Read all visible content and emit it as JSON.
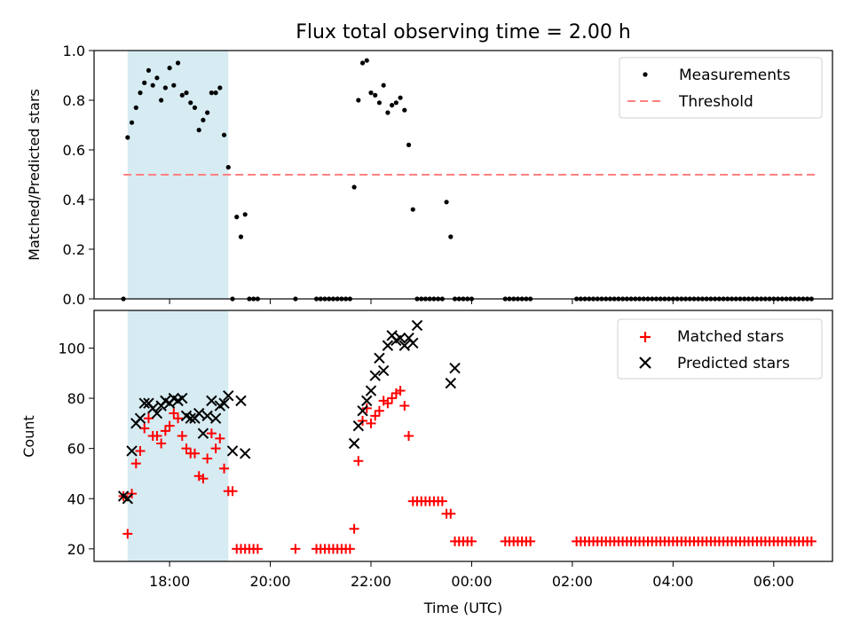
{
  "title": "Flux total observing time = 2.00 h",
  "colors": {
    "matched": "#ff0000",
    "predicted": "#000000",
    "threshold": "#ff8080",
    "span": "#add8e6"
  },
  "chart_data": [
    {
      "type": "scatter",
      "ylabel": "Matched/Predicted stars",
      "ylim": [
        0,
        1.0
      ],
      "yticks": [
        "0.0",
        "0.2",
        "0.4",
        "0.6",
        "0.8",
        "1.0"
      ],
      "legend": [
        "Measurements",
        "Threshold"
      ],
      "legend_position": "top-right",
      "threshold": 0.5,
      "threshold_range": [
        "17:05",
        "06:50"
      ],
      "shaded_span": [
        "17:10",
        "19:10"
      ],
      "series": [
        {
          "name": "Measurements",
          "x": [
            "17:05",
            "17:10",
            "17:15",
            "17:20",
            "17:25",
            "17:30",
            "17:35",
            "17:40",
            "17:45",
            "17:50",
            "17:55",
            "18:00",
            "18:05",
            "18:10",
            "18:15",
            "18:20",
            "18:25",
            "18:30",
            "18:35",
            "18:40",
            "18:45",
            "18:50",
            "18:55",
            "19:00",
            "19:05",
            "19:10",
            "19:15",
            "19:20",
            "19:25",
            "19:30",
            "19:35",
            "19:40",
            "19:45",
            "20:30",
            "20:55",
            "21:00",
            "21:05",
            "21:10",
            "21:15",
            "21:20",
            "21:25",
            "21:30",
            "21:35",
            "21:40",
            "21:45",
            "21:50",
            "21:55",
            "22:00",
            "22:05",
            "22:10",
            "22:15",
            "22:20",
            "22:25",
            "22:30",
            "22:35",
            "22:40",
            "22:45",
            "22:50",
            "22:55",
            "23:00",
            "23:05",
            "23:10",
            "23:15",
            "23:20",
            "23:25",
            "23:30",
            "23:35",
            "23:40",
            "23:45",
            "23:50",
            "23:55",
            "00:00",
            "00:40",
            "00:45",
            "00:50",
            "00:55",
            "01:00",
            "01:05",
            "01:10",
            "02:05",
            "02:10",
            "02:15",
            "02:20",
            "02:25",
            "02:30",
            "02:35",
            "02:40",
            "02:45",
            "02:50",
            "02:55",
            "03:00",
            "03:05",
            "03:10",
            "03:15",
            "03:20",
            "03:25",
            "03:30",
            "03:35",
            "03:40",
            "03:45",
            "03:50",
            "03:55",
            "04:00",
            "04:05",
            "04:10",
            "04:15",
            "04:20",
            "04:25",
            "04:30",
            "04:35",
            "04:40",
            "04:45",
            "04:50",
            "04:55",
            "05:00",
            "05:05",
            "05:10",
            "05:15",
            "05:20",
            "05:25",
            "05:30",
            "05:35",
            "05:40",
            "05:45",
            "05:50",
            "05:55",
            "06:00",
            "06:05",
            "06:10",
            "06:15",
            "06:20",
            "06:25",
            "06:30",
            "06:35",
            "06:40",
            "06:45"
          ],
          "y": [
            0.0,
            0.65,
            0.71,
            0.77,
            0.83,
            0.87,
            0.92,
            0.86,
            0.89,
            0.8,
            0.85,
            0.93,
            0.86,
            0.95,
            0.82,
            0.83,
            0.79,
            0.77,
            0.68,
            0.72,
            0.75,
            0.83,
            0.83,
            0.85,
            0.66,
            0.53,
            0.0,
            0.33,
            0.25,
            0.34,
            0.0,
            0.0,
            0.0,
            0.0,
            0.0,
            0.0,
            0.0,
            0.0,
            0.0,
            0.0,
            0.0,
            0.0,
            0.0,
            0.45,
            0.8,
            0.95,
            0.96,
            0.83,
            0.82,
            0.79,
            0.86,
            0.75,
            0.78,
            0.79,
            0.81,
            0.76,
            0.62,
            0.36,
            0.0,
            0.0,
            0.0,
            0.0,
            0.0,
            0.0,
            0.0,
            0.39,
            0.25,
            0.0,
            0.0,
            0.0,
            0.0,
            0.0,
            0.0,
            0.0,
            0.0,
            0.0,
            0.0,
            0.0,
            0.0,
            0.0,
            0.0,
            0.0,
            0.0,
            0.0,
            0.0,
            0.0,
            0.0,
            0.0,
            0.0,
            0.0,
            0.0,
            0.0,
            0.0,
            0.0,
            0.0,
            0.0,
            0.0,
            0.0,
            0.0,
            0.0,
            0.0,
            0.0,
            0.0,
            0.0,
            0.0,
            0.0,
            0.0,
            0.0,
            0.0,
            0.0,
            0.0,
            0.0,
            0.0,
            0.0,
            0.0,
            0.0,
            0.0,
            0.0,
            0.0,
            0.0,
            0.0,
            0.0,
            0.0,
            0.0,
            0.0,
            0.0,
            0.0,
            0.0,
            0.0,
            0.0,
            0.0,
            0.0,
            0.0,
            0.0,
            0.0,
            0.0
          ]
        }
      ]
    },
    {
      "type": "scatter",
      "xlabel": "Time (UTC)",
      "ylabel": "Count",
      "ylim": [
        15,
        115
      ],
      "yticks": [
        "20",
        "40",
        "60",
        "80",
        "100"
      ],
      "xticks": [
        "18:00",
        "20:00",
        "22:00",
        "00:00",
        "02:00",
        "04:00",
        "06:00"
      ],
      "xrange": [
        "16:30",
        "07:10"
      ],
      "legend": [
        "Matched stars",
        "Predicted stars"
      ],
      "legend_position": "top-right",
      "shaded_span": [
        "17:10",
        "19:10"
      ],
      "series": [
        {
          "name": "Matched stars",
          "x": [
            "17:05",
            "17:10",
            "17:15",
            "17:20",
            "17:25",
            "17:30",
            "17:35",
            "17:40",
            "17:45",
            "17:50",
            "17:55",
            "18:00",
            "18:05",
            "18:10",
            "18:15",
            "18:20",
            "18:25",
            "18:30",
            "18:35",
            "18:40",
            "18:45",
            "18:50",
            "18:55",
            "19:00",
            "19:05",
            "19:10",
            "19:15",
            "19:20",
            "19:25",
            "19:30",
            "19:35",
            "19:40",
            "19:45",
            "20:30",
            "20:55",
            "21:00",
            "21:05",
            "21:10",
            "21:15",
            "21:20",
            "21:25",
            "21:30",
            "21:35",
            "21:40",
            "21:45",
            "21:50",
            "21:55",
            "22:00",
            "22:05",
            "22:10",
            "22:15",
            "22:20",
            "22:25",
            "22:30",
            "22:35",
            "22:40",
            "22:45",
            "22:50",
            "22:55",
            "23:00",
            "23:05",
            "23:10",
            "23:15",
            "23:20",
            "23:25",
            "23:30",
            "23:35",
            "23:40",
            "23:45",
            "23:50",
            "23:55",
            "00:00",
            "00:40",
            "00:45",
            "00:50",
            "00:55",
            "01:00",
            "01:05",
            "01:10",
            "02:05",
            "02:10",
            "02:15",
            "02:20",
            "02:25",
            "02:30",
            "02:35",
            "02:40",
            "02:45",
            "02:50",
            "02:55",
            "03:00",
            "03:05",
            "03:10",
            "03:15",
            "03:20",
            "03:25",
            "03:30",
            "03:35",
            "03:40",
            "03:45",
            "03:50",
            "03:55",
            "04:00",
            "04:05",
            "04:10",
            "04:15",
            "04:20",
            "04:25",
            "04:30",
            "04:35",
            "04:40",
            "04:45",
            "04:50",
            "04:55",
            "05:00",
            "05:05",
            "05:10",
            "05:15",
            "05:20",
            "05:25",
            "05:30",
            "05:35",
            "05:40",
            "05:45",
            "05:50",
            "05:55",
            "06:00",
            "06:05",
            "06:10",
            "06:15",
            "06:20",
            "06:25",
            "06:30",
            "06:35",
            "06:40",
            "06:45"
          ],
          "y": [
            41,
            26,
            42,
            54,
            59,
            68,
            72,
            65,
            65,
            62,
            67,
            69,
            74,
            72,
            65,
            60,
            58,
            58,
            49,
            48,
            56,
            66,
            60,
            64,
            52,
            43,
            43,
            20,
            20,
            20,
            20,
            20,
            20,
            20,
            20,
            20,
            20,
            20,
            20,
            20,
            20,
            20,
            20,
            28,
            55,
            71,
            76,
            70,
            73,
            75,
            79,
            78,
            80,
            82,
            83,
            77,
            65,
            39,
            39,
            39,
            39,
            39,
            39,
            39,
            39,
            34,
            34,
            23,
            23,
            23,
            23,
            23,
            23,
            23,
            23,
            23,
            23,
            23,
            23,
            23,
            23,
            23,
            23,
            23,
            23,
            23,
            23,
            23,
            23,
            23,
            23,
            23,
            23,
            23,
            23,
            23,
            23,
            23,
            23,
            23,
            23,
            23,
            23,
            23,
            23,
            23,
            23,
            23,
            23,
            23,
            23,
            23,
            23,
            23,
            23,
            23,
            23,
            23,
            23,
            23,
            23,
            23,
            23,
            23,
            23,
            23,
            23,
            23,
            23,
            23,
            23,
            23,
            23,
            23,
            23,
            23
          ]
        },
        {
          "name": "Predicted stars",
          "x": [
            "17:05",
            "17:10",
            "17:15",
            "17:20",
            "17:25",
            "17:30",
            "17:35",
            "17:40",
            "17:45",
            "17:50",
            "17:55",
            "18:00",
            "18:05",
            "18:10",
            "18:15",
            "18:20",
            "18:25",
            "18:30",
            "18:35",
            "18:40",
            "18:45",
            "18:50",
            "18:55",
            "19:00",
            "19:05",
            "19:10",
            "19:15",
            "19:25",
            "19:30",
            "21:40",
            "21:45",
            "21:50",
            "21:55",
            "22:00",
            "22:05",
            "22:10",
            "22:15",
            "22:20",
            "22:25",
            "22:30",
            "22:35",
            "22:40",
            "22:45",
            "22:50",
            "22:55",
            "23:35",
            "23:40"
          ],
          "y": [
            41,
            40,
            59,
            70,
            72,
            78,
            78,
            76,
            74,
            77,
            79,
            78,
            80,
            79,
            80,
            73,
            72,
            72,
            74,
            66,
            73,
            79,
            72,
            77,
            78,
            81,
            59,
            79,
            58,
            62,
            69,
            75,
            79,
            83,
            89,
            96,
            91,
            101,
            105,
            103,
            104,
            101,
            104,
            102,
            109,
            86,
            92
          ]
        }
      ]
    }
  ]
}
